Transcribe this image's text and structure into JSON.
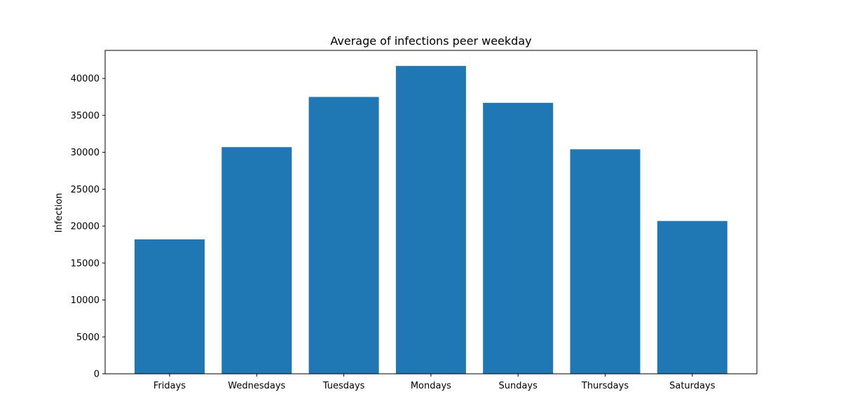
{
  "chart_data": {
    "type": "bar",
    "title": "Average of infections peer weekday",
    "xlabel": "",
    "ylabel": "Infection",
    "categories": [
      "Fridays",
      "Wednesdays",
      "Tuesdays",
      "Mondays",
      "Sundays",
      "Thursdays",
      "Saturdays"
    ],
    "values": [
      18200,
      30700,
      37500,
      41700,
      36700,
      30400,
      20700
    ],
    "ylim": [
      0,
      43800
    ],
    "yticks": [
      0,
      5000,
      10000,
      15000,
      20000,
      25000,
      30000,
      35000,
      40000
    ],
    "bar_color": "#1f77b4",
    "grid": false,
    "legend": "none"
  }
}
